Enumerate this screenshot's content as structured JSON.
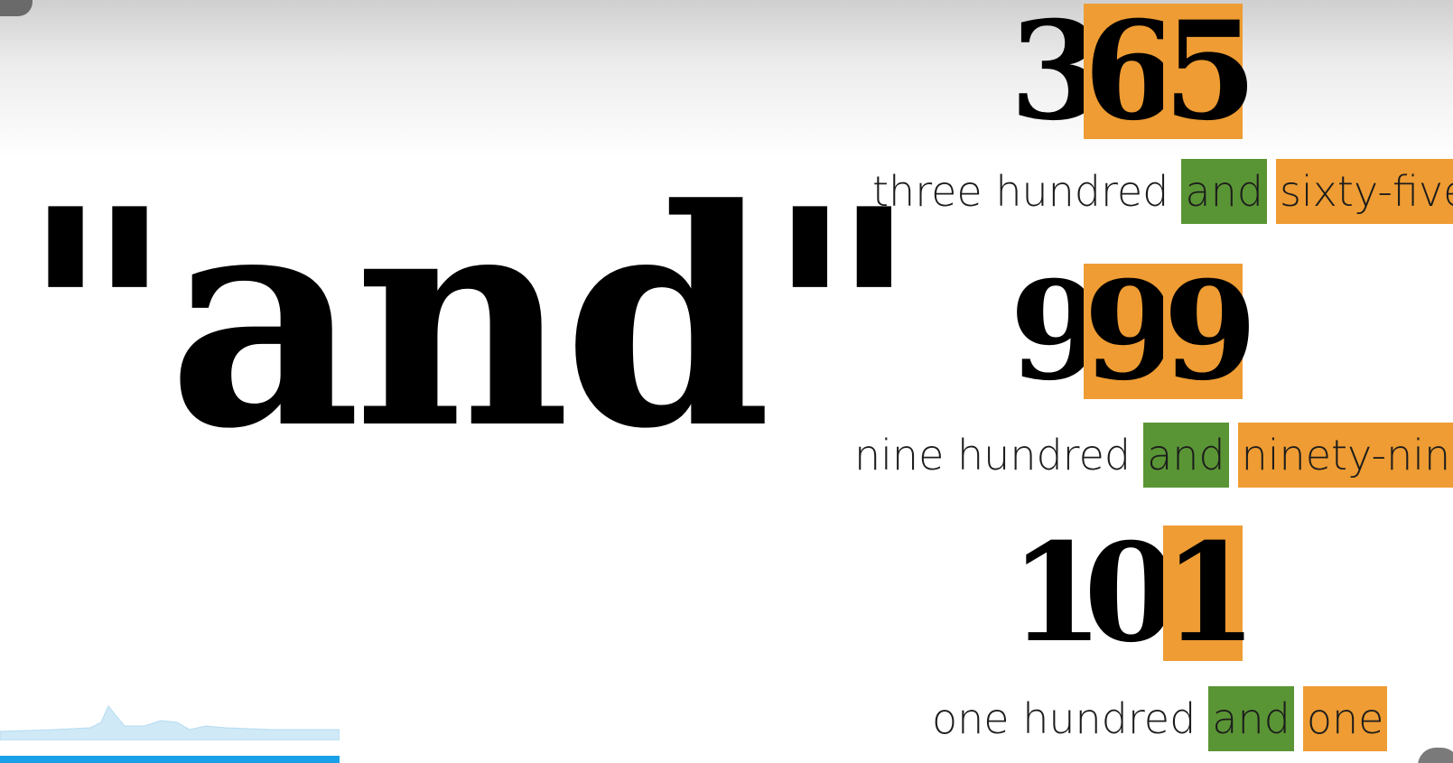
{
  "slide": {
    "big_word": "\"and\""
  },
  "examples": [
    {
      "digits": [
        "3",
        "6",
        "5"
      ],
      "highlight": [
        "none",
        "orange",
        "orange"
      ],
      "phrase": [
        {
          "text": "three hundred",
          "highlight": "none"
        },
        {
          "text": "and",
          "highlight": "green"
        },
        {
          "text": "sixty-five",
          "highlight": "orange"
        }
      ]
    },
    {
      "digits": [
        "9",
        "9",
        "9"
      ],
      "highlight": [
        "none",
        "orange",
        "orange"
      ],
      "phrase": [
        {
          "text": "nine hundred",
          "highlight": "none"
        },
        {
          "text": "and",
          "highlight": "green"
        },
        {
          "text": "ninety-nine",
          "highlight": "orange"
        }
      ]
    },
    {
      "digits": [
        "1",
        "0",
        "1"
      ],
      "highlight": [
        "none",
        "none",
        "orange"
      ],
      "phrase": [
        {
          "text": "one hundred",
          "highlight": "none"
        },
        {
          "text": "and",
          "highlight": "green"
        },
        {
          "text": "one",
          "highlight": "orange"
        }
      ]
    }
  ],
  "colors": {
    "orange": "#ee9c33",
    "green": "#5a9535",
    "progress": "#1aa0e8"
  }
}
